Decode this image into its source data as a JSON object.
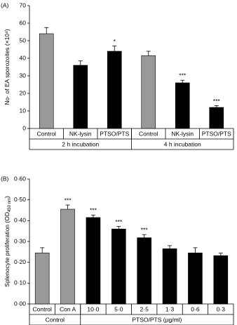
{
  "chart_data": [
    {
      "type": "bar",
      "panel_label": "(A)",
      "ylabel": "No· of EA sporozoites (×10⁴)",
      "categories": [
        "Control",
        "NK-lysin",
        "PTSO/PTS",
        "Control",
        "NK-lysin",
        "PTSO/PTS"
      ],
      "values": [
        54,
        36,
        44,
        41.5,
        26,
        12
      ],
      "errors": [
        3.5,
        2.5,
        3,
        2.5,
        1.5,
        1
      ],
      "colors": [
        "#999999",
        "#000000",
        "#000000",
        "#999999",
        "#000000",
        "#000000"
      ],
      "annotations": [
        null,
        null,
        "*",
        null,
        "***",
        "***"
      ],
      "groups": [
        "2 h incubation",
        "4 h incubation"
      ],
      "ylim": [
        0,
        70
      ],
      "yticks": [
        0,
        10,
        20,
        30,
        40,
        50,
        60,
        70
      ]
    },
    {
      "type": "bar",
      "panel_label": "(B)",
      "ylabel": "Splenocyte proliferation (OD",
      "ylabel_subscript": "450 nm",
      "ylabel_suffix": ")",
      "categories": [
        "Control",
        "Con A",
        "10·0",
        "5·0",
        "2·5",
        "1·3",
        "0·6",
        "0·3"
      ],
      "values": [
        0.245,
        0.455,
        0.415,
        0.36,
        0.318,
        0.265,
        0.245,
        0.232
      ],
      "errors": [
        0.025,
        0.02,
        0.012,
        0.012,
        0.015,
        0.015,
        0.025,
        0.012
      ],
      "colors": [
        "#999999",
        "#999999",
        "#000000",
        "#000000",
        "#000000",
        "#000000",
        "#000000",
        "#000000"
      ],
      "annotations": [
        null,
        "***",
        "***",
        "***",
        "***",
        null,
        null,
        null
      ],
      "groups": [
        "Control",
        "PTSO/PTS (µg/ml)"
      ],
      "ylim": [
        0,
        0.6
      ],
      "yticks": [
        {
          "value": 0,
          "label": "0·00"
        },
        {
          "value": 0.1,
          "label": "0·10"
        },
        {
          "value": 0.2,
          "label": "0·20"
        },
        {
          "value": 0.3,
          "label": "0·30"
        },
        {
          "value": 0.4,
          "label": "0·40"
        },
        {
          "value": 0.5,
          "label": "0·50"
        },
        {
          "value": 0.6,
          "label": "0·60"
        }
      ]
    }
  ]
}
